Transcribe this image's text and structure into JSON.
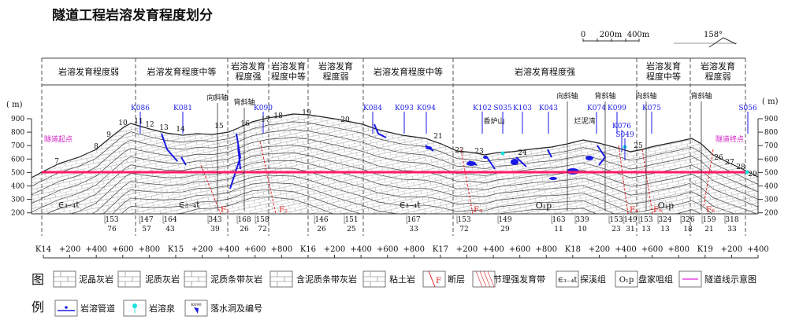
{
  "title": "隧道工程岩溶发育程度划分",
  "scale_bar": {
    "labels": [
      "0",
      "200m",
      "400m"
    ]
  },
  "orientation": "158°",
  "elevation_unit": "( m)",
  "elevation_ticks": [
    "900",
    "800",
    "700",
    "600",
    "500",
    "400",
    "300",
    "200"
  ],
  "zones": [
    "岩溶发育程度弱",
    "岩溶发育程度中等",
    "岩溶发育\n程度强",
    "岩溶发育\n程度中等",
    "岩溶发育\n程度弱",
    "岩溶发育程度中等",
    "岩溶发育程度强",
    "岩溶发育\n程度中等",
    "岩溶发育\n程度弱"
  ],
  "tunnel_start": "隧道起点",
  "tunnel_end": "隧道终点",
  "karst_ids": [
    "K086",
    "K081",
    "K090",
    "K084",
    "K093",
    "K094",
    "K102",
    "S035",
    "K103",
    "K043",
    "K074",
    "K099",
    "K076",
    "S049",
    "K075",
    "S056"
  ],
  "fold_axes": [
    "向斜轴",
    "背斜轴",
    "向斜轴",
    "背斜轴",
    "向斜轴",
    "背斜轴"
  ],
  "place_names": [
    "香炉山",
    "烂泥湾"
  ],
  "point_numbers": [
    "7",
    "8",
    "9",
    "10",
    "11",
    "12",
    "13",
    "14",
    "15",
    "16",
    "17",
    "18",
    "19",
    "20",
    "21",
    "22",
    "23",
    "24",
    "25",
    "26",
    "27",
    "28",
    "29"
  ],
  "formations": [
    "∈₃₋₄t",
    "∈₃₋₄t",
    "∈₃₋₄t",
    "O₁p",
    "O₁p"
  ],
  "faults": [
    "F₁",
    "F₂",
    "F₃",
    "F₄",
    "F₅",
    "F₆"
  ],
  "attitudes": [
    [
      "153",
      "76"
    ],
    [
      "147",
      "57"
    ],
    [
      "164",
      "43"
    ],
    [
      "343",
      "39"
    ],
    [
      "168",
      "26"
    ],
    [
      "158",
      "72"
    ],
    [
      "146",
      "26"
    ],
    [
      "151",
      "25"
    ],
    [
      "167",
      "33"
    ],
    [
      "153",
      "72"
    ],
    [
      "149",
      "29"
    ],
    [
      "163",
      "11"
    ],
    [
      "339",
      "10"
    ],
    [
      "153",
      "23"
    ],
    [
      "149",
      "31"
    ],
    [
      "153",
      "13"
    ],
    [
      "324",
      "13"
    ],
    [
      "326",
      "18"
    ],
    [
      "159",
      "21"
    ],
    [
      "318",
      "33"
    ]
  ],
  "chainage": [
    "K14",
    "+200",
    "+400",
    "+600",
    "+800",
    "K15",
    "+200",
    "+400",
    "+600",
    "+800",
    "K16",
    "+200",
    "+400",
    "+600",
    "+800",
    "K17",
    "+200",
    "+400",
    "+600",
    "+800",
    "K18",
    "+200",
    "+400",
    "+600",
    "+800",
    "K19",
    "+200",
    "+400"
  ],
  "legend": {
    "heading": [
      "图",
      "例"
    ],
    "row1": [
      "泥晶灰岩",
      "泥质灰岩",
      "泥质条带灰岩",
      "含泥质条带灰岩",
      "粘土岩",
      "断层",
      "节理强发育带",
      "探溪组",
      "盘家咀组",
      "隧道线示意图"
    ],
    "row2": [
      "岩溶管道",
      "岩溶泉",
      "落水洞及编号"
    ],
    "fault_symbol": "F",
    "formation_symbols": [
      "∈₃₋₄t",
      "O₁p"
    ],
    "sinkhole_symbol": "K090"
  },
  "colors": {
    "tunnel": "#ff1a66",
    "karst": "#1a1ae6",
    "fault": "#e02020",
    "spring": "#19e0e0",
    "label": "#d020c0"
  }
}
